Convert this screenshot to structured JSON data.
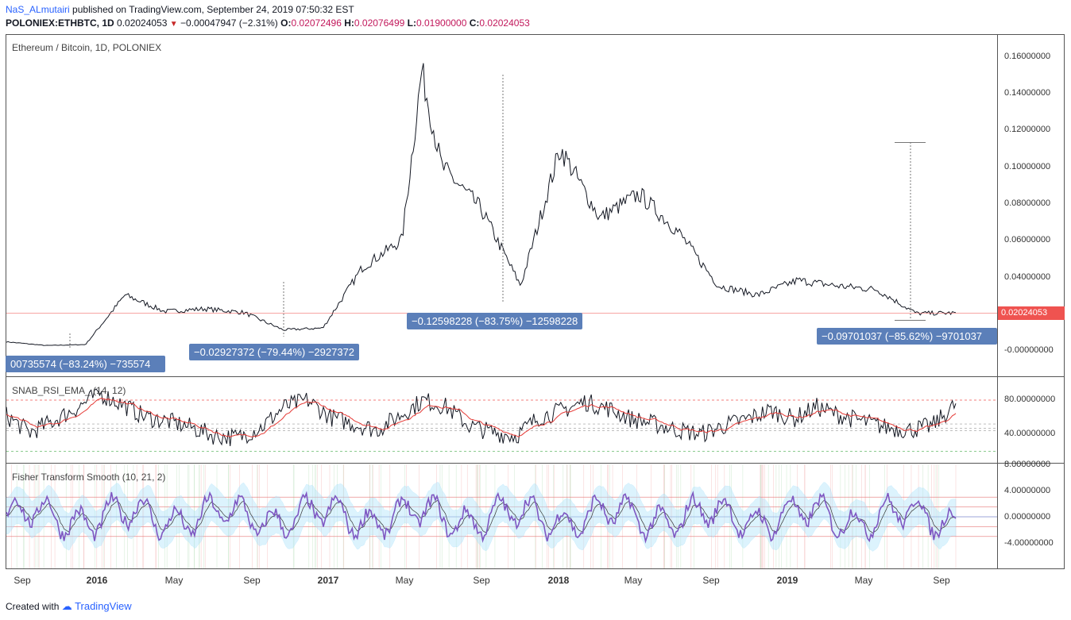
{
  "header": {
    "user": "NaS_ALmutairi",
    "published": "published on TradingView.com, September 24, 2019 07:50:32 EST",
    "symbol": "POLONIEX:ETHBTC, 1D",
    "last": "0.02024053",
    "change": "−0.00047947 (−2.31%)",
    "open_label": "O:",
    "open": "0.02072496",
    "high_label": "H:",
    "high": "0.02076499",
    "low_label": "L:",
    "low": "0.01900000",
    "close_label": "C:",
    "close": "0.02024053"
  },
  "panes": {
    "price_title": "Ethereum / Bitcoin, 1D, POLONIEX",
    "rsi_title": "SNAB_RSI_EMA_ (14, 12)",
    "fisher_title": "Fisher Transform Smooth (10, 21, 2)"
  },
  "price_axis": [
    "0.16000000",
    "0.14000000",
    "0.12000000",
    "0.10000000",
    "0.08000000",
    "0.06000000",
    "0.04000000",
    "-0.00000000"
  ],
  "rsi_axis": [
    "80.00000000",
    "40.00000000"
  ],
  "fisher_axis": [
    "8.00000000",
    "4.00000000",
    "0.00000000",
    "-4.00000000"
  ],
  "last_price_tag": "0.02024053",
  "measure_labels": [
    "00735574 (−83.24%) −735574",
    "−0.02927372 (−79.44%) −2927372",
    "−0.12598228 (−83.75%) −12598228",
    "−0.09701037 (−85.62%) −9701037"
  ],
  "x_axis": [
    "Sep",
    "2016",
    "May",
    "Sep",
    "2017",
    "May",
    "Sep",
    "2018",
    "May",
    "Sep",
    "2019",
    "May",
    "Sep"
  ],
  "footer": {
    "created": "Created with",
    "brand": "TradingView"
  },
  "colors": {
    "price_line": "#131722",
    "rsi_line": "#131722",
    "rsi_ema": "#e53935",
    "fisher": "#7e57c2",
    "fisher_band": "#b3e5fc",
    "last_price": "#ef5350",
    "measure_box": "#5b7fb9"
  },
  "chart_data": [
    {
      "type": "line",
      "title": "Ethereum / Bitcoin, 1D, POLONIEX",
      "x": [
        "2015-09",
        "2015-11",
        "2016-01",
        "2016-03",
        "2016-05",
        "2016-07",
        "2016-09",
        "2016-11",
        "2017-01",
        "2017-03",
        "2017-05",
        "2017-06",
        "2017-07",
        "2017-09",
        "2017-11",
        "2018-01",
        "2018-03",
        "2018-05",
        "2018-07",
        "2018-09",
        "2018-11",
        "2019-01",
        "2019-03",
        "2019-05",
        "2019-07",
        "2019-09"
      ],
      "series": [
        {
          "values": [
            0.0045,
            0.0025,
            0.003,
            0.03,
            0.021,
            0.0225,
            0.0205,
            0.011,
            0.012,
            0.045,
            0.06,
            0.152,
            0.1,
            0.077,
            0.035,
            0.11,
            0.072,
            0.085,
            0.064,
            0.035,
            0.03,
            0.038,
            0.035,
            0.033,
            0.02,
            0.0202
          ]
        }
      ],
      "ylim": [
        -0.005,
        0.17
      ]
    },
    {
      "type": "line",
      "title": "SNAB_RSI_EMA_ (14, 12)",
      "series": [
        {
          "values": [
            62,
            42,
            55,
            70,
            88,
            75,
            60,
            55,
            48,
            38,
            36,
            48,
            72,
            80,
            60,
            52,
            45,
            62,
            80,
            72,
            50,
            42,
            38,
            60,
            68,
            78,
            70,
            58,
            52,
            45,
            40,
            50,
            58,
            68,
            58,
            72,
            62,
            55,
            48,
            45,
            50,
            75
          ]
        }
      ],
      "levels": [
        80,
        20
      ],
      "ylim": [
        15,
        95
      ]
    },
    {
      "type": "line",
      "title": "Fisher Transform Smooth (10, 21, 2)",
      "ylim": [
        -6.5,
        8.5
      ],
      "levels": [
        3,
        1.5,
        0,
        -1.5,
        -3
      ]
    }
  ]
}
